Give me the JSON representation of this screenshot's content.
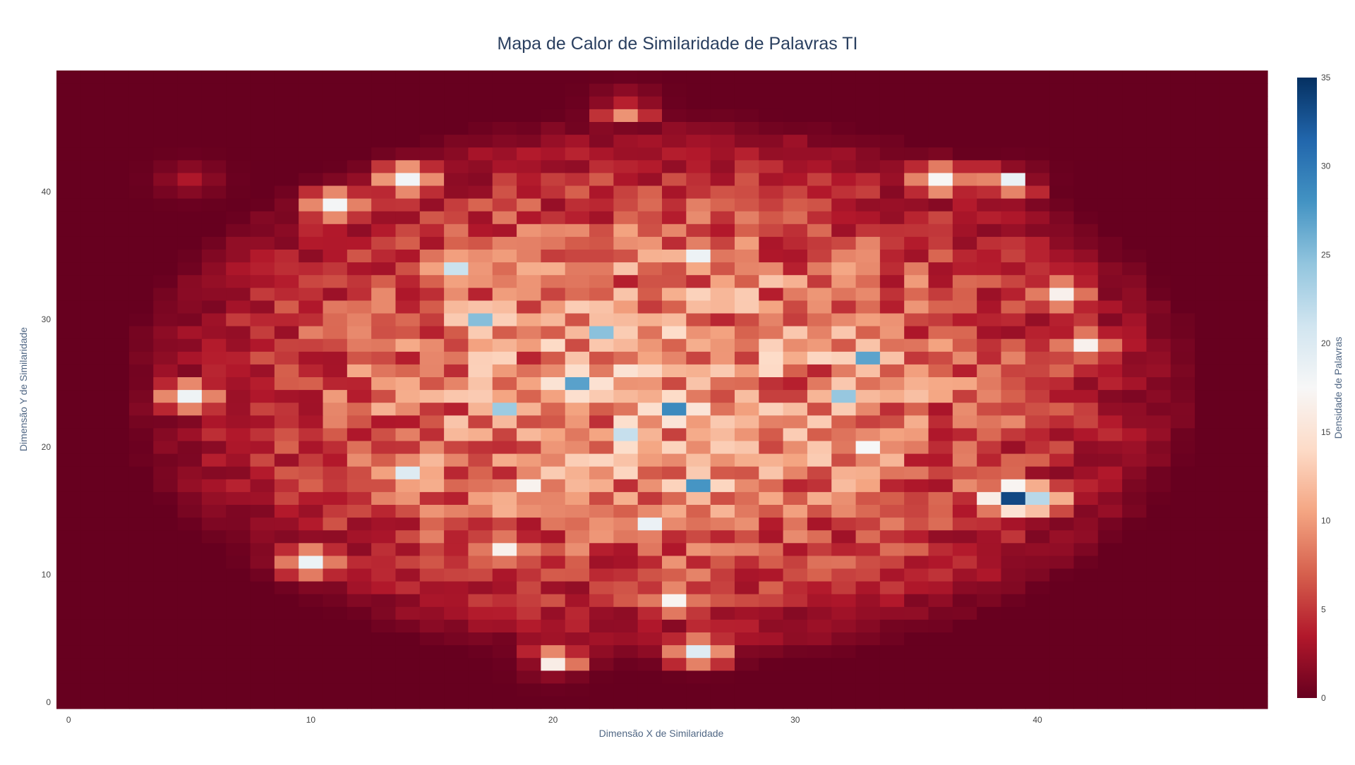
{
  "chart_data": {
    "type": "heatmap",
    "title": "Mapa de Calor de Similaridade de Palavras TI",
    "xlabel": "Dimensão X de Similaridade",
    "ylabel": "Dimensão Y de Similaridade",
    "colorbar_title": "Densidade de Palavras",
    "colorscale": "RdBu",
    "colorscale_stops": [
      "#67001f",
      "#b2182b",
      "#d6604d",
      "#f4a582",
      "#fddbc7",
      "#f7f7f7",
      "#d1e5f0",
      "#92c5de",
      "#4393c3",
      "#2166ac",
      "#053061"
    ],
    "zmin": 0,
    "zmax": 35,
    "nx": 50,
    "ny": 50,
    "x_range": [
      -0.5,
      49.5
    ],
    "y_range": [
      -0.5,
      49.5
    ],
    "x_ticks": [
      0,
      10,
      20,
      30,
      40
    ],
    "y_ticks": [
      0,
      10,
      20,
      30,
      40
    ],
    "colorbar_ticks": [
      0,
      5,
      10,
      15,
      20,
      25,
      30,
      35
    ],
    "hotspots": [
      {
        "x": 39,
        "y": 16,
        "value": 35
      },
      {
        "x": 25,
        "y": 23,
        "value": 31
      },
      {
        "x": 21,
        "y": 25,
        "value": 31
      },
      {
        "x": 17,
        "y": 30,
        "value": 29
      },
      {
        "x": 26,
        "y": 17,
        "value": 28
      },
      {
        "x": 33,
        "y": 27,
        "value": 28
      },
      {
        "x": 32,
        "y": 24,
        "value": 27
      },
      {
        "x": 22,
        "y": 29,
        "value": 27
      },
      {
        "x": 40,
        "y": 16,
        "value": 26
      },
      {
        "x": 16,
        "y": 34,
        "value": 23
      },
      {
        "x": 18,
        "y": 23,
        "value": 24
      },
      {
        "x": 23,
        "y": 21,
        "value": 23
      },
      {
        "x": 14,
        "y": 18,
        "value": 22
      },
      {
        "x": 11,
        "y": 39,
        "value": 20
      },
      {
        "x": 14,
        "y": 41,
        "value": 21
      },
      {
        "x": 10,
        "y": 11,
        "value": 19
      },
      {
        "x": 25,
        "y": 8,
        "value": 19
      },
      {
        "x": 20,
        "y": 3,
        "value": 19
      },
      {
        "x": 26,
        "y": 4,
        "value": 20
      },
      {
        "x": 26,
        "y": 35,
        "value": 19
      },
      {
        "x": 23,
        "y": 47,
        "value": 20
      },
      {
        "x": 36,
        "y": 41,
        "value": 19
      },
      {
        "x": 39,
        "y": 41,
        "value": 19
      },
      {
        "x": 5,
        "y": 24,
        "value": 19
      },
      {
        "x": 5,
        "y": 41,
        "value": 17
      },
      {
        "x": 41,
        "y": 32,
        "value": 18
      },
      {
        "x": 42,
        "y": 28,
        "value": 17
      },
      {
        "x": 33,
        "y": 20,
        "value": 19
      },
      {
        "x": 19,
        "y": 17,
        "value": 19
      },
      {
        "x": 24,
        "y": 14,
        "value": 19
      },
      {
        "x": 18,
        "y": 12,
        "value": 18
      }
    ]
  }
}
